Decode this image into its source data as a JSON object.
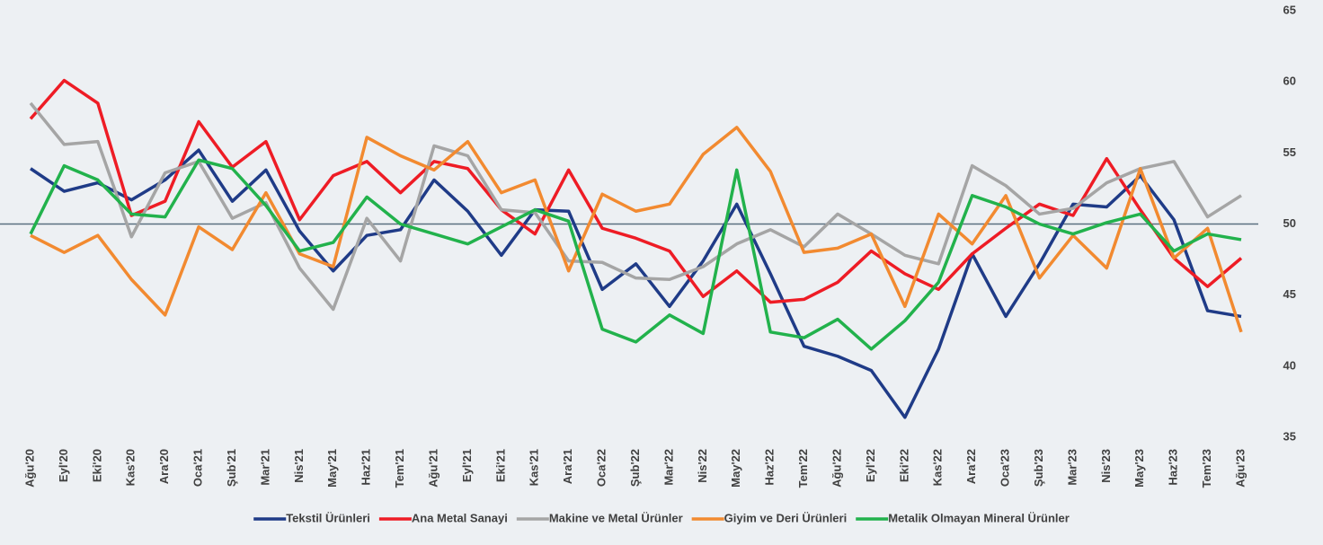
{
  "chart_data": {
    "type": "line",
    "categories": [
      "Ağu'20",
      "Eyl'20",
      "Eki'20",
      "Kas'20",
      "Ara'20",
      "Oca'21",
      "Şub'21",
      "Mar'21",
      "Nis'21",
      "May'21",
      "Haz'21",
      "Tem'21",
      "Ağu'21",
      "Eyl'21",
      "Eki'21",
      "Kas'21",
      "Ara'21",
      "Oca'22",
      "Şub'22",
      "Mar'22",
      "Nis'22",
      "May'22",
      "Haz'22",
      "Tem'22",
      "Ağu'22",
      "Eyl'22",
      "Eki'22",
      "Kas'22",
      "Ara'22",
      "Oca'23",
      "Şub'23",
      "Mar'23",
      "Nis'23",
      "May'23",
      "Haz'23",
      "Tem'23",
      "Ağu'23"
    ],
    "series": [
      {
        "name": "Tekstil Ürünleri",
        "color": "#1f3b87",
        "values": [
          53.9,
          52.3,
          52.9,
          51.7,
          53.1,
          55.2,
          51.6,
          53.8,
          49.5,
          46.7,
          49.2,
          49.6,
          53.1,
          50.9,
          47.8,
          51.0,
          50.9,
          45.4,
          47.2,
          44.2,
          47.4,
          51.4,
          46.5,
          41.4,
          40.7,
          39.7,
          36.4,
          41.2,
          47.9,
          43.5,
          47.2,
          51.4,
          51.2,
          53.4,
          50.3,
          43.9,
          43.5
        ]
      },
      {
        "name": "Ana Metal Sanayi",
        "color": "#ee1c25",
        "values": [
          57.4,
          60.1,
          58.5,
          50.6,
          51.6,
          57.2,
          54.0,
          55.8,
          50.3,
          53.4,
          54.4,
          52.2,
          54.4,
          53.9,
          51.0,
          49.3,
          53.8,
          49.7,
          49.0,
          48.1,
          44.9,
          46.7,
          44.5,
          44.7,
          45.9,
          48.1,
          46.5,
          45.4,
          47.9,
          49.7,
          51.4,
          50.6,
          54.6,
          51.0,
          47.6,
          45.6,
          47.6
        ]
      },
      {
        "name": "Makine ve Metal Ürünler",
        "color": "#a5a5a5",
        "values": [
          58.5,
          55.6,
          55.8,
          49.1,
          53.6,
          54.4,
          50.4,
          51.5,
          46.9,
          44.0,
          50.4,
          47.4,
          55.5,
          54.8,
          51.0,
          50.8,
          47.4,
          47.3,
          46.2,
          46.1,
          47.0,
          48.6,
          49.6,
          48.4,
          50.7,
          49.3,
          47.8,
          47.2,
          54.1,
          52.7,
          50.7,
          51.1,
          52.9,
          53.9,
          54.4,
          50.5,
          52.0
        ]
      },
      {
        "name": "Giyim ve Deri Ürünleri",
        "color": "#f28a30",
        "values": [
          49.2,
          48.0,
          49.2,
          46.1,
          43.6,
          49.8,
          48.2,
          52.2,
          47.9,
          47.0,
          56.1,
          54.8,
          53.8,
          55.8,
          52.2,
          53.1,
          46.7,
          52.1,
          50.9,
          51.4,
          54.9,
          56.8,
          53.7,
          48.0,
          48.3,
          49.3,
          44.2,
          50.7,
          48.6,
          52.0,
          46.2,
          49.2,
          46.9,
          53.9,
          47.6,
          49.7,
          42.4
        ]
      },
      {
        "name": "Metalik Olmayan Mineral Ürünler",
        "color": "#22b24c",
        "values": [
          49.3,
          54.1,
          53.1,
          50.7,
          50.5,
          54.5,
          53.9,
          51.3,
          48.1,
          48.7,
          51.9,
          50.0,
          49.3,
          48.6,
          49.8,
          51.0,
          50.2,
          42.6,
          41.7,
          43.6,
          42.3,
          53.8,
          42.4,
          42.0,
          43.3,
          41.2,
          43.2,
          45.9,
          52.0,
          51.2,
          50.0,
          49.3,
          50.1,
          50.7,
          48.1,
          49.3,
          48.9
        ]
      }
    ],
    "ylim": [
      35,
      65
    ],
    "yticks": [
      35,
      40,
      45,
      50,
      55,
      60,
      65
    ],
    "reference_line": 50,
    "reference_color": "#5a6f80",
    "legend": "bottom"
  }
}
